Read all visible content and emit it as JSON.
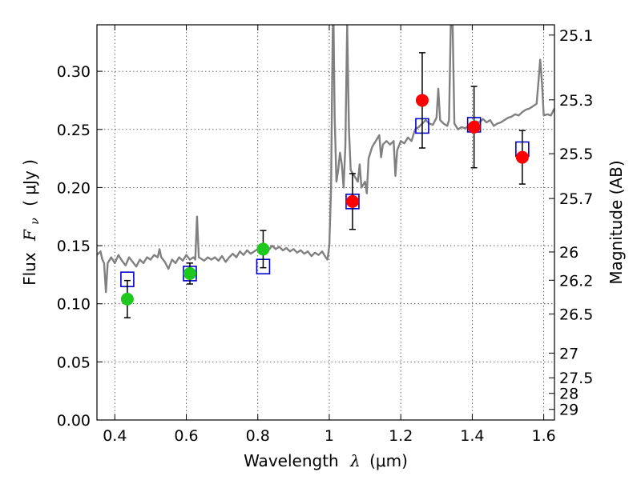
{
  "chart_data": {
    "type": "scatter",
    "title": "",
    "xlabel": {
      "prefix": "Wavelength",
      "symbol": "λ",
      "unit": "(μm)"
    },
    "ylabel": {
      "prefix": "Flux",
      "symbol": "F",
      "subscript": "ν",
      "unit": "( μJy )"
    },
    "y2label": "Magnitude (AB)",
    "xlim": [
      0.35,
      1.63
    ],
    "ylim": [
      0.0,
      0.34
    ],
    "grid": true,
    "x_ticks": [
      {
        "value": 0.4,
        "label": "0.4"
      },
      {
        "value": 0.6,
        "label": "0.6"
      },
      {
        "value": 0.8,
        "label": "0.8"
      },
      {
        "value": 1.0,
        "label": "1"
      },
      {
        "value": 1.2,
        "label": "1.2"
      },
      {
        "value": 1.4,
        "label": "1.4"
      },
      {
        "value": 1.6,
        "label": "1.6"
      }
    ],
    "y_ticks": [
      {
        "value": 0.0,
        "label": "0.00"
      },
      {
        "value": 0.05,
        "label": "0.05"
      },
      {
        "value": 0.1,
        "label": "0.10"
      },
      {
        "value": 0.15,
        "label": "0.15"
      },
      {
        "value": 0.2,
        "label": "0.20"
      },
      {
        "value": 0.25,
        "label": "0.25"
      },
      {
        "value": 0.3,
        "label": "0.30"
      }
    ],
    "y2_ticks": [
      {
        "value": 25.1,
        "label": "25.1"
      },
      {
        "value": 25.3,
        "label": "25.3"
      },
      {
        "value": 25.5,
        "label": "25.5"
      },
      {
        "value": 25.7,
        "label": "25.7"
      },
      {
        "value": 26,
        "label": "26"
      },
      {
        "value": 26.2,
        "label": "26.2"
      },
      {
        "value": 26.5,
        "label": "26.5"
      },
      {
        "value": 27,
        "label": "27"
      },
      {
        "value": 27.5,
        "label": "27.5"
      },
      {
        "value": 28,
        "label": "28"
      },
      {
        "value": 29,
        "label": "29"
      }
    ],
    "series": [
      {
        "kind": "line",
        "color": "#808080",
        "points": [
          [
            0.35,
            0.142
          ],
          [
            0.36,
            0.145
          ],
          [
            0.365,
            0.138
          ],
          [
            0.37,
            0.135
          ],
          [
            0.375,
            0.11
          ],
          [
            0.38,
            0.135
          ],
          [
            0.39,
            0.14
          ],
          [
            0.4,
            0.135
          ],
          [
            0.41,
            0.142
          ],
          [
            0.42,
            0.137
          ],
          [
            0.43,
            0.133
          ],
          [
            0.44,
            0.14
          ],
          [
            0.45,
            0.136
          ],
          [
            0.46,
            0.132
          ],
          [
            0.47,
            0.138
          ],
          [
            0.48,
            0.135
          ],
          [
            0.49,
            0.14
          ],
          [
            0.5,
            0.138
          ],
          [
            0.51,
            0.142
          ],
          [
            0.52,
            0.14
          ],
          [
            0.525,
            0.147
          ],
          [
            0.53,
            0.14
          ],
          [
            0.54,
            0.136
          ],
          [
            0.55,
            0.13
          ],
          [
            0.56,
            0.138
          ],
          [
            0.57,
            0.135
          ],
          [
            0.58,
            0.14
          ],
          [
            0.59,
            0.137
          ],
          [
            0.6,
            0.142
          ],
          [
            0.61,
            0.138
          ],
          [
            0.62,
            0.14
          ],
          [
            0.625,
            0.138
          ],
          [
            0.63,
            0.175
          ],
          [
            0.635,
            0.14
          ],
          [
            0.64,
            0.139
          ],
          [
            0.65,
            0.137
          ],
          [
            0.66,
            0.14
          ],
          [
            0.67,
            0.138
          ],
          [
            0.68,
            0.14
          ],
          [
            0.69,
            0.137
          ],
          [
            0.7,
            0.141
          ],
          [
            0.71,
            0.136
          ],
          [
            0.72,
            0.14
          ],
          [
            0.73,
            0.143
          ],
          [
            0.74,
            0.14
          ],
          [
            0.75,
            0.145
          ],
          [
            0.76,
            0.142
          ],
          [
            0.77,
            0.146
          ],
          [
            0.78,
            0.143
          ],
          [
            0.79,
            0.145
          ],
          [
            0.8,
            0.147
          ],
          [
            0.81,
            0.144
          ],
          [
            0.82,
            0.148
          ],
          [
            0.83,
            0.146
          ],
          [
            0.84,
            0.15
          ],
          [
            0.85,
            0.147
          ],
          [
            0.86,
            0.149
          ],
          [
            0.87,
            0.146
          ],
          [
            0.88,
            0.148
          ],
          [
            0.89,
            0.145
          ],
          [
            0.9,
            0.147
          ],
          [
            0.91,
            0.144
          ],
          [
            0.92,
            0.146
          ],
          [
            0.93,
            0.143
          ],
          [
            0.94,
            0.145
          ],
          [
            0.95,
            0.141
          ],
          [
            0.96,
            0.144
          ],
          [
            0.97,
            0.142
          ],
          [
            0.98,
            0.145
          ],
          [
            0.99,
            0.14
          ],
          [
            0.995,
            0.138
          ],
          [
            1.0,
            0.15
          ],
          [
            1.005,
            0.2
          ],
          [
            1.008,
            0.29
          ],
          [
            1.01,
            0.34
          ],
          [
            1.012,
            0.34
          ],
          [
            1.015,
            0.26
          ],
          [
            1.02,
            0.205
          ],
          [
            1.025,
            0.215
          ],
          [
            1.03,
            0.23
          ],
          [
            1.035,
            0.22
          ],
          [
            1.04,
            0.2
          ],
          [
            1.045,
            0.235
          ],
          [
            1.05,
            0.34
          ],
          [
            1.055,
            0.25
          ],
          [
            1.06,
            0.215
          ],
          [
            1.07,
            0.21
          ],
          [
            1.08,
            0.205
          ],
          [
            1.085,
            0.22
          ],
          [
            1.09,
            0.2
          ],
          [
            1.1,
            0.205
          ],
          [
            1.105,
            0.195
          ],
          [
            1.11,
            0.225
          ],
          [
            1.12,
            0.235
          ],
          [
            1.13,
            0.24
          ],
          [
            1.14,
            0.245
          ],
          [
            1.145,
            0.226
          ],
          [
            1.15,
            0.237
          ],
          [
            1.16,
            0.24
          ],
          [
            1.17,
            0.237
          ],
          [
            1.18,
            0.24
          ],
          [
            1.185,
            0.21
          ],
          [
            1.19,
            0.232
          ],
          [
            1.2,
            0.24
          ],
          [
            1.21,
            0.238
          ],
          [
            1.22,
            0.243
          ],
          [
            1.23,
            0.24
          ],
          [
            1.24,
            0.25
          ],
          [
            1.25,
            0.252
          ],
          [
            1.26,
            0.255
          ],
          [
            1.27,
            0.258
          ],
          [
            1.28,
            0.255
          ],
          [
            1.29,
            0.254
          ],
          [
            1.3,
            0.26
          ],
          [
            1.305,
            0.285
          ],
          [
            1.31,
            0.258
          ],
          [
            1.32,
            0.255
          ],
          [
            1.33,
            0.253
          ],
          [
            1.335,
            0.258
          ],
          [
            1.34,
            0.34
          ],
          [
            1.345,
            0.34
          ],
          [
            1.35,
            0.255
          ],
          [
            1.36,
            0.25
          ],
          [
            1.37,
            0.252
          ],
          [
            1.38,
            0.251
          ],
          [
            1.39,
            0.253
          ],
          [
            1.4,
            0.255
          ],
          [
            1.41,
            0.257
          ],
          [
            1.42,
            0.256
          ],
          [
            1.43,
            0.259
          ],
          [
            1.44,
            0.256
          ],
          [
            1.45,
            0.258
          ],
          [
            1.46,
            0.253
          ],
          [
            1.47,
            0.255
          ],
          [
            1.48,
            0.256
          ],
          [
            1.49,
            0.258
          ],
          [
            1.5,
            0.26
          ],
          [
            1.51,
            0.261
          ],
          [
            1.52,
            0.263
          ],
          [
            1.53,
            0.262
          ],
          [
            1.54,
            0.265
          ],
          [
            1.55,
            0.267
          ],
          [
            1.56,
            0.268
          ],
          [
            1.57,
            0.27
          ],
          [
            1.58,
            0.272
          ],
          [
            1.585,
            0.29
          ],
          [
            1.59,
            0.31
          ],
          [
            1.595,
            0.29
          ],
          [
            1.6,
            0.262
          ],
          [
            1.61,
            0.263
          ],
          [
            1.62,
            0.262
          ],
          [
            1.63,
            0.268
          ]
        ]
      },
      {
        "kind": "squares",
        "color": "#0000cc",
        "points": [
          [
            0.435,
            0.121
          ],
          [
            0.61,
            0.126
          ],
          [
            0.815,
            0.132
          ],
          [
            1.065,
            0.188
          ],
          [
            1.26,
            0.253
          ],
          [
            1.405,
            0.254
          ],
          [
            1.54,
            0.233
          ]
        ]
      },
      {
        "kind": "dots",
        "color": "#1ec81e",
        "points": [
          {
            "x": 0.435,
            "y": 0.104,
            "err": 0.016
          },
          {
            "x": 0.61,
            "y": 0.126,
            "err": 0.009
          },
          {
            "x": 0.815,
            "y": 0.147,
            "err": 0.016
          }
        ]
      },
      {
        "kind": "dots",
        "color": "#ff0000",
        "points": [
          {
            "x": 1.065,
            "y": 0.188,
            "err": 0.024
          },
          {
            "x": 1.26,
            "y": 0.275,
            "err": 0.041
          },
          {
            "x": 1.405,
            "y": 0.252,
            "err": 0.035
          },
          {
            "x": 1.54,
            "y": 0.226,
            "err": 0.023
          }
        ]
      }
    ]
  }
}
